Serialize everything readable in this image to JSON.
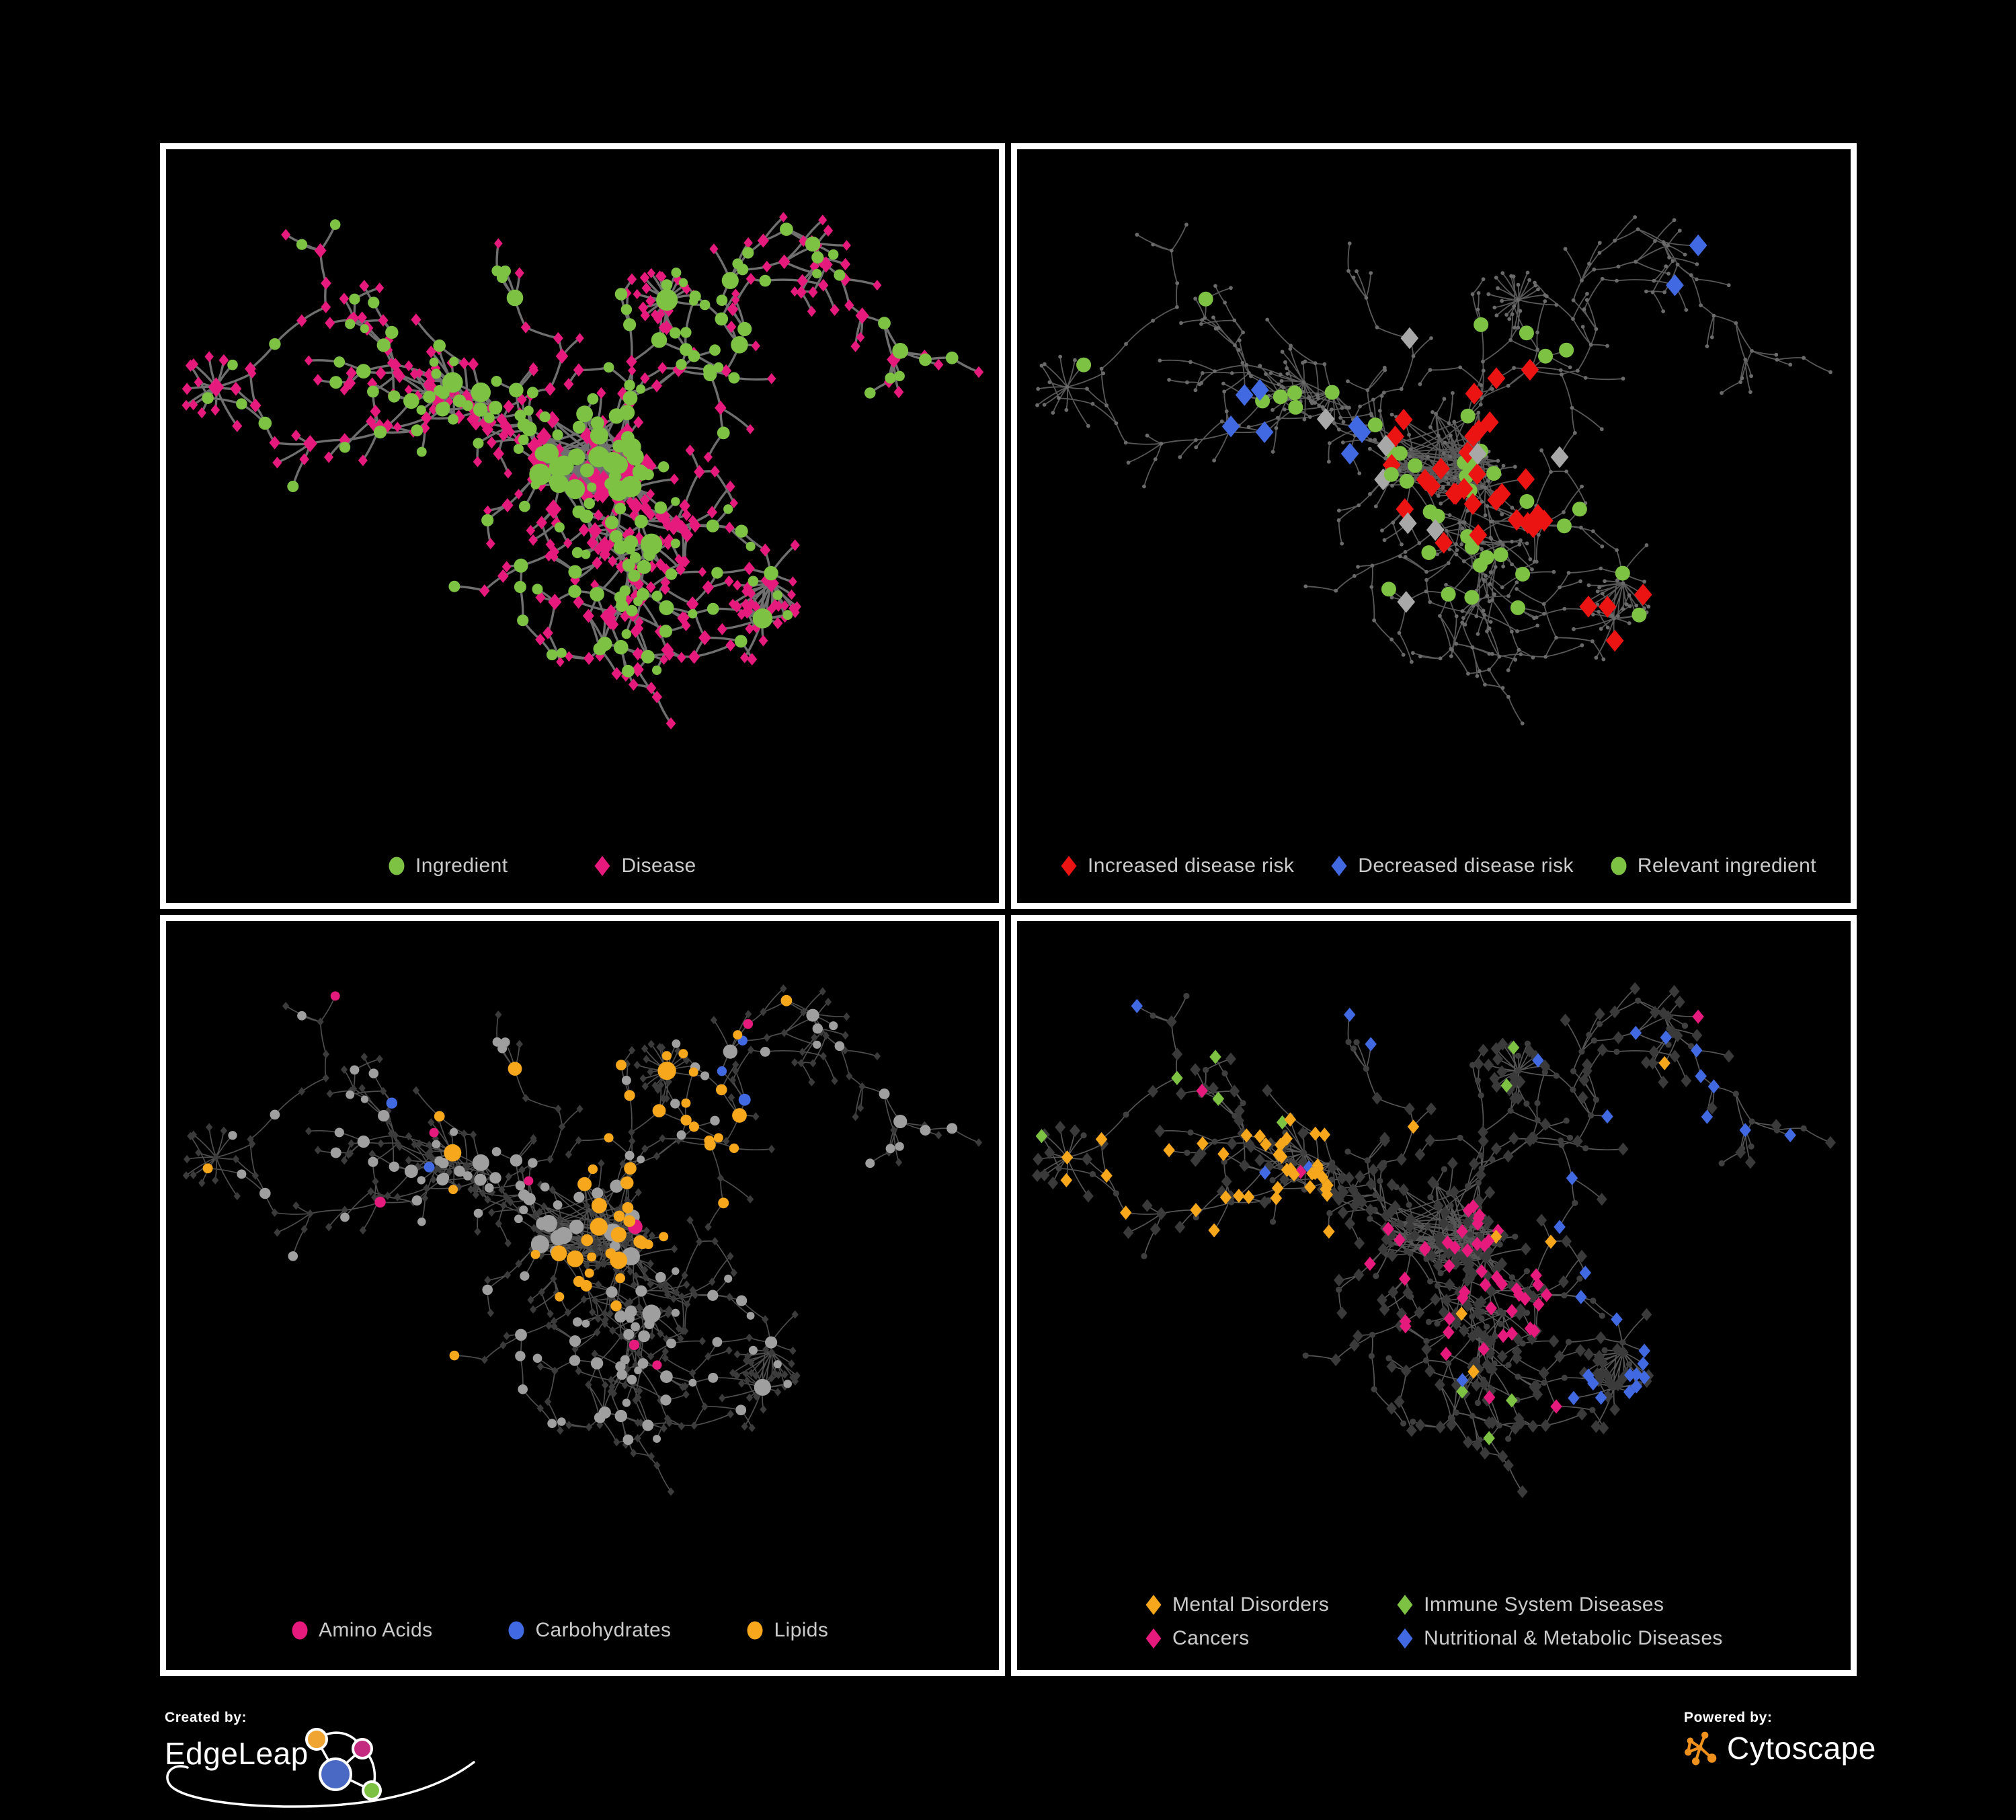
{
  "figure": {
    "background": "#000000",
    "panel_border_color": "#FFFFFF",
    "legend_text_color": "#CBCBCB"
  },
  "panels": [
    {
      "name": "ingredient-disease-network",
      "legend": [
        {
          "label": "Ingredient",
          "shape": "circle",
          "color": "#7DC242"
        },
        {
          "label": "Disease",
          "shape": "diamond",
          "color": "#E61A7D"
        }
      ],
      "style": {
        "mode": "typed",
        "edge_color": "#6F6F6F",
        "edge_width": 3.4,
        "circle_color": "#7DC242",
        "diamond_color": "#E61A7D"
      }
    },
    {
      "name": "disease-risk-network",
      "legend": [
        {
          "label": "Increased disease risk",
          "shape": "diamond",
          "color": "#EC1313"
        },
        {
          "label": "Decreased disease risk",
          "shape": "diamond",
          "color": "#4169E1"
        },
        {
          "label": "Relevant ingredient",
          "shape": "circle",
          "color": "#7DC242"
        }
      ],
      "style": {
        "mode": "risk",
        "edge_color": "#585858",
        "edge_width": 1.8,
        "backdrop_color": "#6A6A6A",
        "increased_color": "#EC1313",
        "decreased_color": "#4169E1",
        "neutral_color": "#A8A8A8",
        "ingredient_color": "#7DC242"
      }
    },
    {
      "name": "nutrient-class-network",
      "legend": [
        {
          "label": "Amino Acids",
          "shape": "circle",
          "color": "#E61A7D"
        },
        {
          "label": "Carbohydrates",
          "shape": "circle",
          "color": "#4169E1"
        },
        {
          "label": "Lipids",
          "shape": "circle",
          "color": "#F6A71B"
        }
      ],
      "style": {
        "mode": "nutrients",
        "edge_color": "#4D4D4D",
        "edge_width": 1.7,
        "circle_default": "#9F9F9F",
        "diamond_default": "#3B3B3B",
        "amino_color": "#E61A7D",
        "carb_color": "#4169E1",
        "lipid_color": "#F6A71B"
      }
    },
    {
      "name": "disease-class-network",
      "legend_columns": 2,
      "legend": [
        {
          "label": "Mental Disorders",
          "shape": "diamond",
          "color": "#F6A71B"
        },
        {
          "label": "Immune System Diseases",
          "shape": "diamond",
          "color": "#7DC242"
        },
        {
          "label": "Cancers",
          "shape": "diamond",
          "color": "#E61A7D"
        },
        {
          "label": "Nutritional & Metabolic Diseases",
          "shape": "diamond",
          "color": "#4169E1"
        }
      ],
      "style": {
        "mode": "diseases",
        "edge_color": "#555555",
        "edge_width": 1.7,
        "circle_default": "#3F3F3F",
        "diamond_default": "#3A3A3A",
        "mental_color": "#F6A71B",
        "immune_color": "#7DC242",
        "cancer_color": "#E61A7D",
        "metabolic_color": "#4169E1"
      }
    }
  ],
  "footer": {
    "created_by_label": "Created by:",
    "created_by_brand": "EdgeLeap",
    "powered_by_label": "Powered by:",
    "powered_by_brand": "Cytoscape",
    "edgeleap_logo": {
      "blue": "#4A69C4",
      "orange": "#F0A431",
      "pink": "#C42B80",
      "green": "#7CC142"
    },
    "cytoscape_logo_color": "#F0911E"
  },
  "network": {
    "seed": 11,
    "node_target": 500,
    "hub_fans": 10,
    "core_links": 80,
    "core_extra_nodes": 26
  }
}
